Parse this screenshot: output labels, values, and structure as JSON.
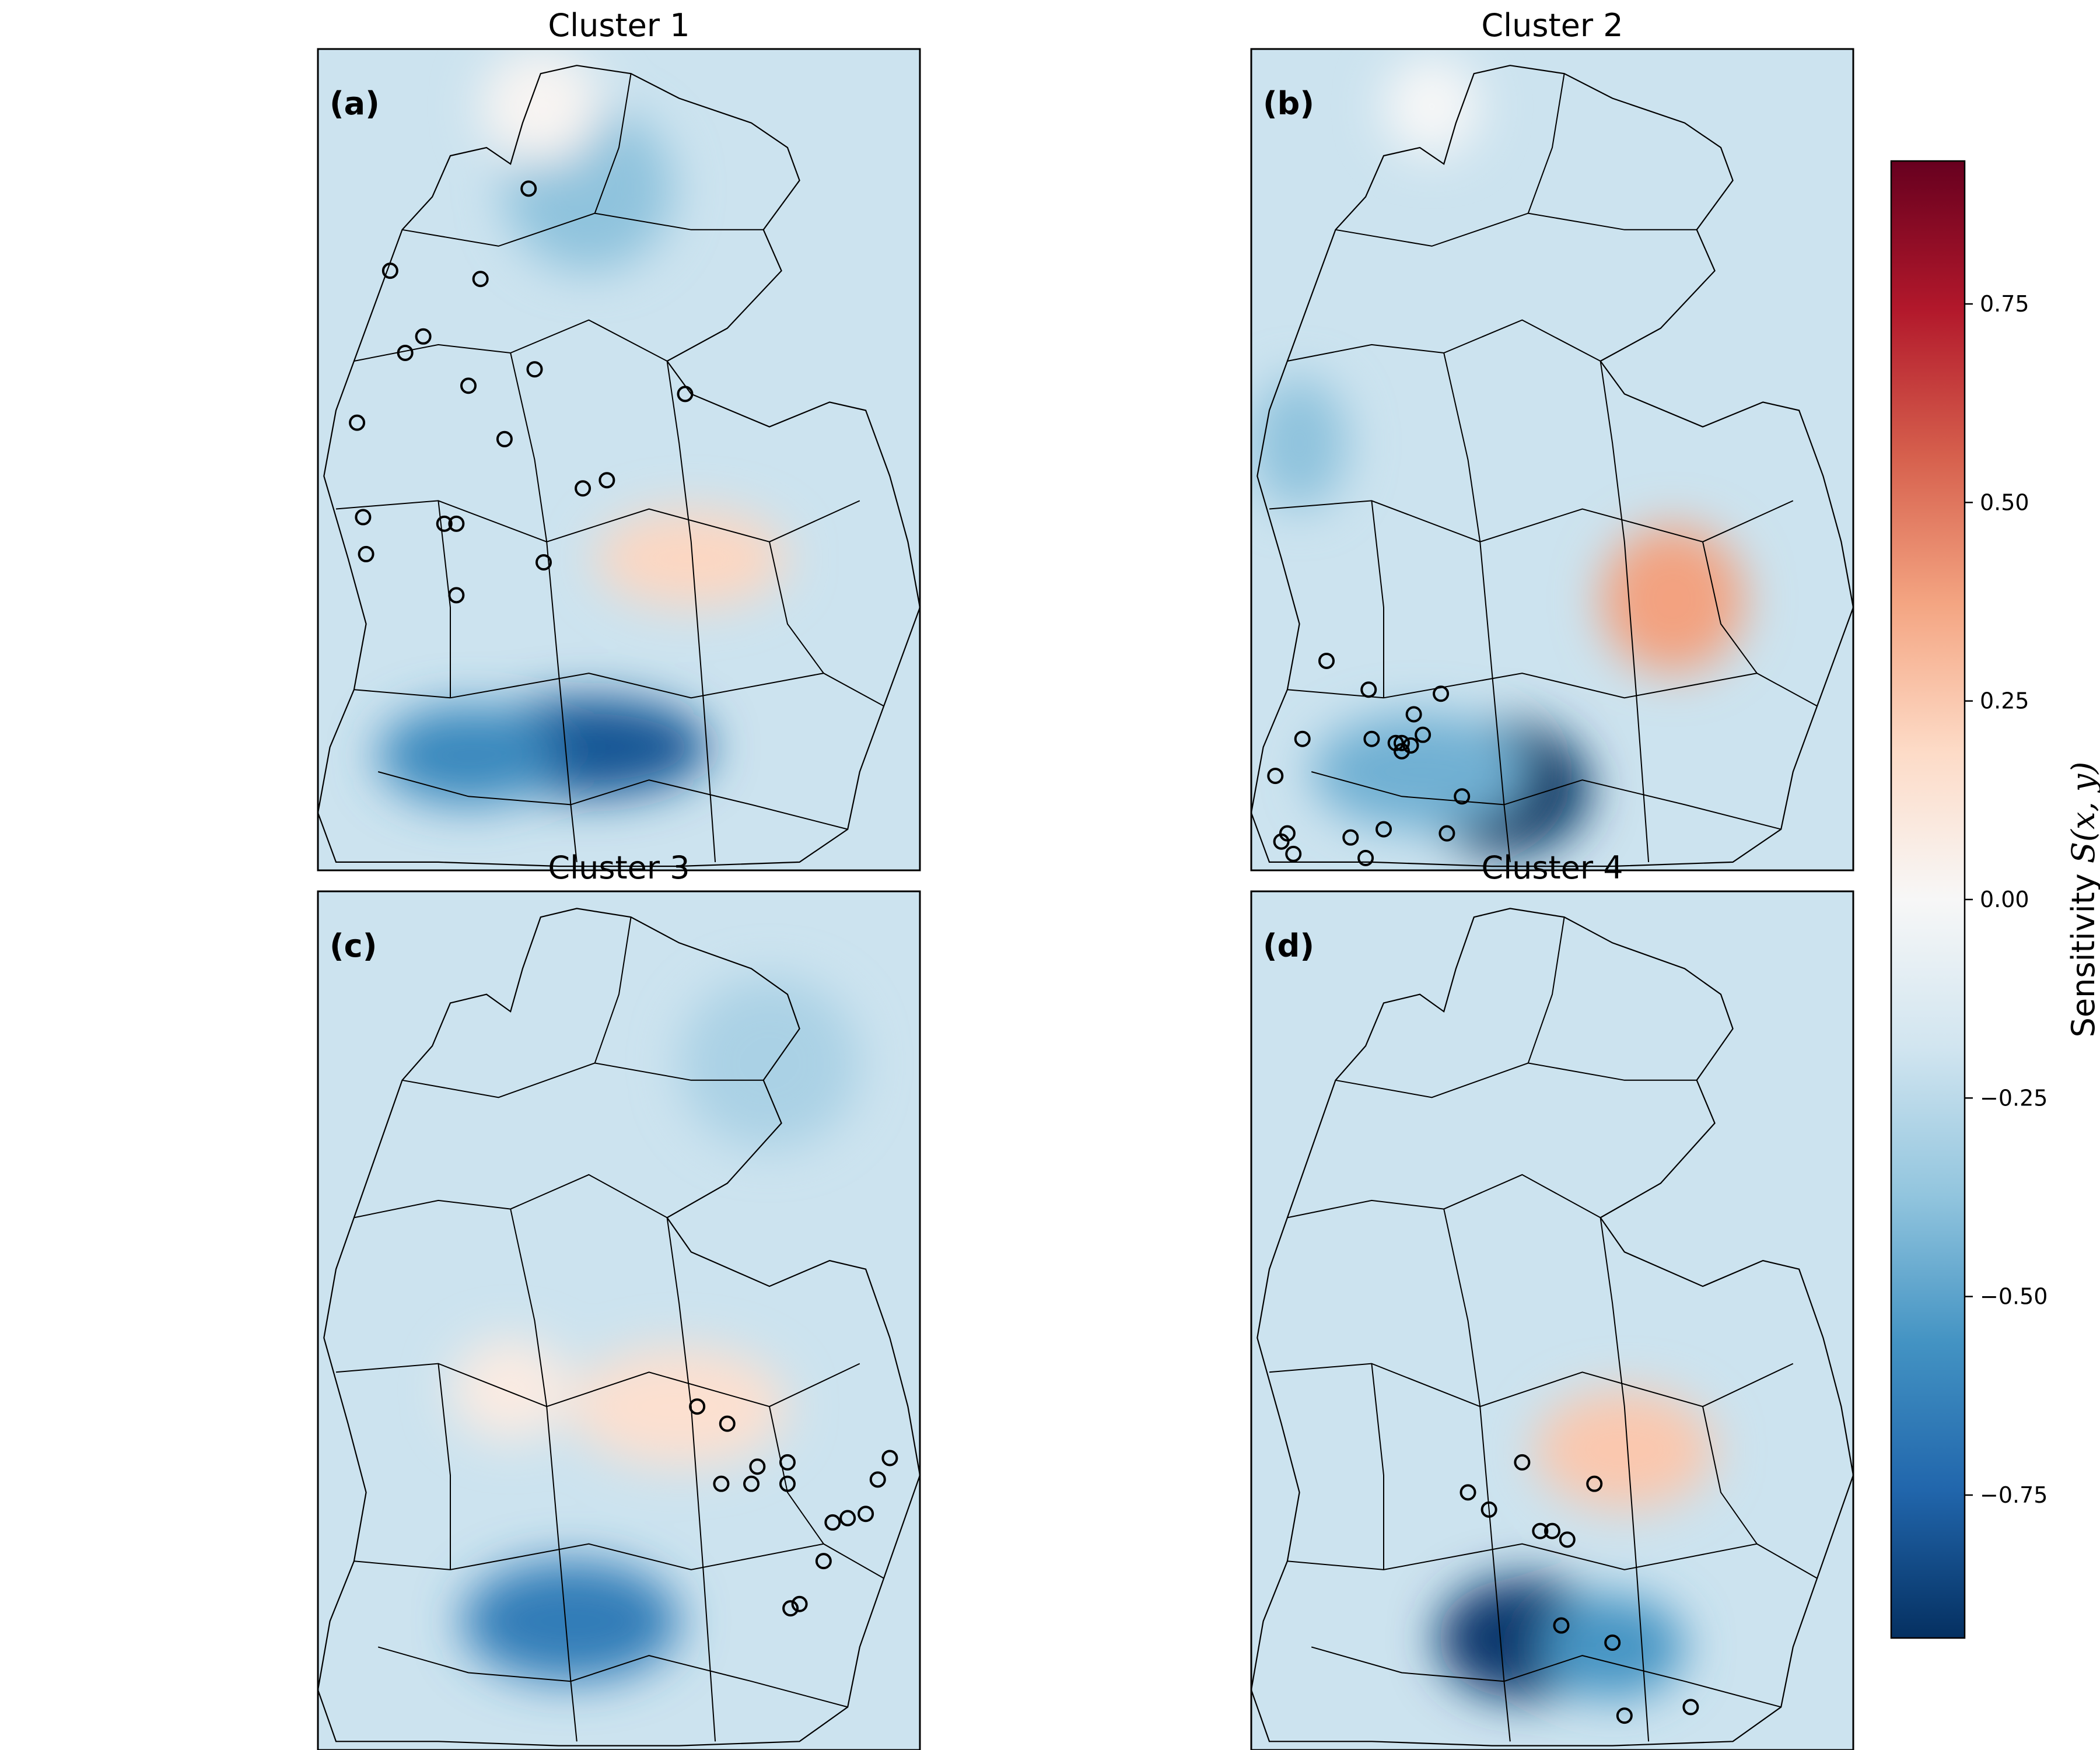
{
  "chart_data": {
    "type": "heatmap",
    "colormap": "RdBu_r",
    "vmin": -0.93,
    "vmax": 0.93,
    "colorbar": {
      "label_prefix": "Sensitivity ",
      "label_math": "S(x, y)",
      "ticks": [
        {
          "value": 0.75,
          "label": "0.75"
        },
        {
          "value": 0.5,
          "label": "0.50"
        },
        {
          "value": 0.25,
          "label": "0.25"
        },
        {
          "value": 0.0,
          "label": "0.00"
        },
        {
          "value": -0.25,
          "label": "−0.25"
        },
        {
          "value": -0.5,
          "label": "−0.50"
        },
        {
          "value": -0.75,
          "label": "−0.75"
        }
      ]
    },
    "panels": [
      {
        "title": "Cluster 1",
        "label": "(a)",
        "field": [
          {
            "x": 0.45,
            "y": 0.85,
            "w": 0.2,
            "h": 0.06,
            "v": -0.8
          },
          {
            "x": 0.25,
            "y": 0.86,
            "w": 0.15,
            "h": 0.06,
            "v": -0.6
          },
          {
            "x": 0.45,
            "y": 0.17,
            "w": 0.14,
            "h": 0.1,
            "v": -0.38
          },
          {
            "x": 0.62,
            "y": 0.62,
            "w": 0.16,
            "h": 0.06,
            "v": 0.2
          },
          {
            "x": 0.37,
            "y": 0.07,
            "w": 0.1,
            "h": 0.07,
            "v": 0.02
          }
        ],
        "stations": [
          [
            0.35,
            0.17
          ],
          [
            0.12,
            0.27
          ],
          [
            0.27,
            0.28
          ],
          [
            0.175,
            0.35
          ],
          [
            0.145,
            0.37
          ],
          [
            0.36,
            0.39
          ],
          [
            0.25,
            0.41
          ],
          [
            0.065,
            0.455
          ],
          [
            0.31,
            0.475
          ],
          [
            0.48,
            0.525
          ],
          [
            0.44,
            0.535
          ],
          [
            0.61,
            0.42
          ],
          [
            0.075,
            0.57
          ],
          [
            0.21,
            0.578
          ],
          [
            0.23,
            0.578
          ],
          [
            0.08,
            0.615
          ],
          [
            0.375,
            0.625
          ],
          [
            0.23,
            0.665
          ]
        ]
      },
      {
        "title": "Cluster 2",
        "label": "(b)",
        "field": [
          {
            "x": 0.42,
            "y": 0.9,
            "w": 0.14,
            "h": 0.08,
            "v": -0.95
          },
          {
            "x": 0.28,
            "y": 0.88,
            "w": 0.18,
            "h": 0.07,
            "v": -0.45
          },
          {
            "x": 0.7,
            "y": 0.67,
            "w": 0.12,
            "h": 0.09,
            "v": 0.38
          },
          {
            "x": 0.08,
            "y": 0.48,
            "w": 0.08,
            "h": 0.08,
            "v": -0.38
          },
          {
            "x": 0.3,
            "y": 0.07,
            "w": 0.08,
            "h": 0.06,
            "v": 0.0
          }
        ],
        "stations": [
          [
            0.125,
            0.745
          ],
          [
            0.195,
            0.78
          ],
          [
            0.315,
            0.785
          ],
          [
            0.085,
            0.84
          ],
          [
            0.27,
            0.81
          ],
          [
            0.285,
            0.835
          ],
          [
            0.265,
            0.848
          ],
          [
            0.24,
            0.845
          ],
          [
            0.25,
            0.855
          ],
          [
            0.2,
            0.84
          ],
          [
            0.25,
            0.845
          ],
          [
            0.04,
            0.885
          ],
          [
            0.06,
            0.955
          ],
          [
            0.22,
            0.95
          ],
          [
            0.35,
            0.91
          ],
          [
            0.165,
            0.96
          ],
          [
            0.325,
            0.955
          ],
          [
            0.07,
            0.98
          ],
          [
            0.19,
            0.985
          ],
          [
            0.05,
            0.965
          ]
        ]
      },
      {
        "title": "Cluster 3",
        "label": "(c)",
        "field": [
          {
            "x": 0.42,
            "y": 0.85,
            "w": 0.18,
            "h": 0.07,
            "v": -0.65
          },
          {
            "x": 0.6,
            "y": 0.6,
            "w": 0.18,
            "h": 0.07,
            "v": 0.15
          },
          {
            "x": 0.32,
            "y": 0.58,
            "w": 0.1,
            "h": 0.06,
            "v": 0.08
          },
          {
            "x": 0.75,
            "y": 0.2,
            "w": 0.15,
            "h": 0.1,
            "v": -0.3
          }
        ],
        "stations": [
          [
            0.63,
            0.6
          ],
          [
            0.68,
            0.62
          ],
          [
            0.78,
            0.665
          ],
          [
            0.73,
            0.67
          ],
          [
            0.67,
            0.69
          ],
          [
            0.72,
            0.69
          ],
          [
            0.78,
            0.69
          ],
          [
            0.95,
            0.66
          ],
          [
            0.93,
            0.685
          ],
          [
            0.91,
            0.725
          ],
          [
            0.88,
            0.73
          ],
          [
            0.855,
            0.735
          ],
          [
            0.84,
            0.78
          ],
          [
            0.8,
            0.83
          ],
          [
            0.785,
            0.835
          ]
        ]
      },
      {
        "title": "Cluster 4",
        "label": "(d)",
        "field": [
          {
            "x": 0.45,
            "y": 0.87,
            "w": 0.14,
            "h": 0.07,
            "v": -0.9
          },
          {
            "x": 0.6,
            "y": 0.88,
            "w": 0.12,
            "h": 0.06,
            "v": -0.55
          },
          {
            "x": 0.62,
            "y": 0.65,
            "w": 0.15,
            "h": 0.07,
            "v": 0.25
          }
        ],
        "stations": [
          [
            0.45,
            0.665
          ],
          [
            0.57,
            0.69
          ],
          [
            0.36,
            0.7
          ],
          [
            0.395,
            0.72
          ],
          [
            0.48,
            0.745
          ],
          [
            0.5,
            0.745
          ],
          [
            0.525,
            0.755
          ],
          [
            0.515,
            0.855
          ],
          [
            0.6,
            0.875
          ],
          [
            0.62,
            0.96
          ],
          [
            0.73,
            0.95
          ]
        ]
      }
    ]
  }
}
